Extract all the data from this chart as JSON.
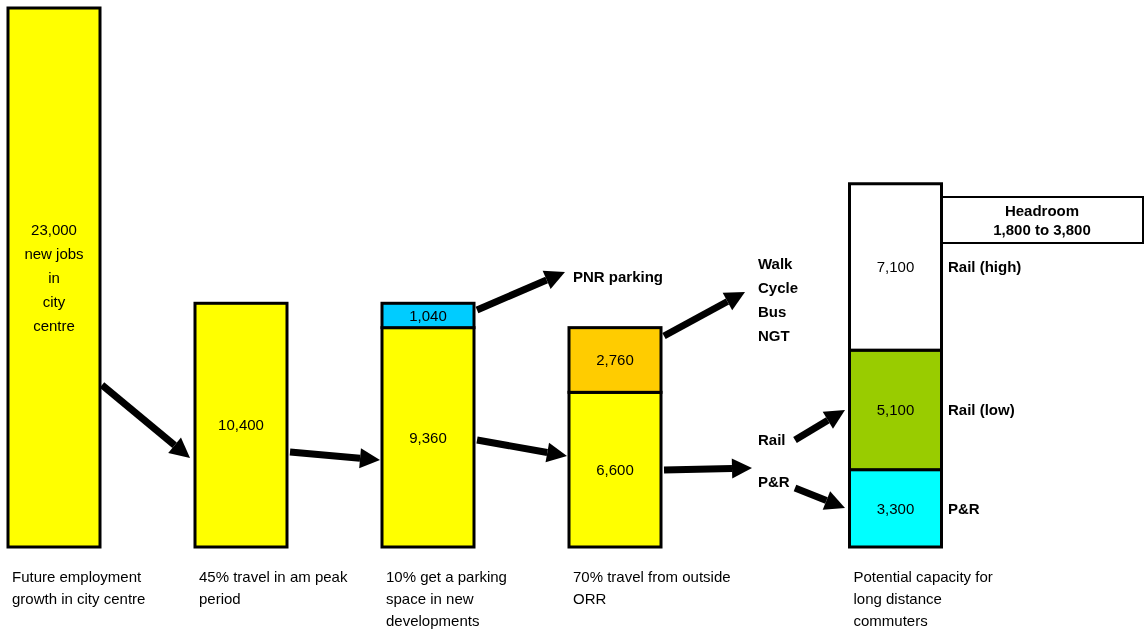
{
  "chart_data": {
    "type": "bar",
    "stacked": true,
    "categories": [
      "Future employment growth in city centre",
      "45% travel in am peak period",
      "10% get a parking space in new developments",
      "70% travel from outside ORR",
      "Potential capacity for long distance commuters"
    ],
    "series": [
      {
        "colors": [
          "#ffff00",
          "#ffff00",
          "#ffff00",
          "#ffff00",
          "#00ffff"
        ],
        "values": [
          23000,
          10400,
          9360,
          6600,
          3300
        ],
        "value_labels": [
          "23,000\nnew jobs\nin\ncity\ncentre",
          "10,400",
          "9,360",
          "6,600",
          "3,300"
        ]
      },
      {
        "colors": [
          null,
          null,
          "#00ccff",
          "#ffcc00",
          "#99cc00"
        ],
        "values": [
          null,
          null,
          1040,
          2760,
          5100
        ],
        "value_labels": [
          null,
          null,
          "1,040",
          "2,760",
          "5,100"
        ]
      },
      {
        "colors": [
          null,
          null,
          null,
          null,
          "#ffffff"
        ],
        "values": [
          null,
          null,
          null,
          null,
          7100
        ],
        "value_labels": [
          null,
          null,
          null,
          null,
          "7,100"
        ]
      }
    ],
    "annotations": [
      "PNR parking",
      "Walk\nCycle\nBus\nNGT",
      "Rail",
      "P&R",
      "Rail (high)",
      "Rail (low)",
      "P&R",
      "Headroom\n1,800  to  3,800"
    ]
  }
}
